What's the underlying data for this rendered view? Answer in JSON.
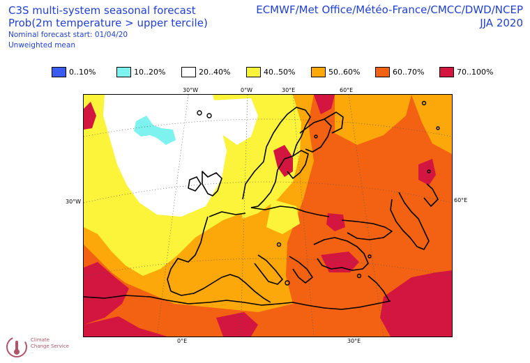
{
  "header": {
    "title": "C3S multi-system seasonal forecast",
    "subtitle": "Prob(2m temperature > upper tercile)",
    "start": "Nominal forecast start: 01/04/20",
    "mean": "Unweighted mean",
    "centres": "ECMWF/Met Office/Météo-France/CMCC/DWD/NCEP",
    "season": "JJA 2020"
  },
  "legend": [
    {
      "label": "0..10%",
      "color": "#3a5cf5"
    },
    {
      "label": "10..20%",
      "color": "#7df2ef"
    },
    {
      "label": "20..40%",
      "color": "#ffffff"
    },
    {
      "label": "40..50%",
      "color": "#fbf43b"
    },
    {
      "label": "50..60%",
      "color": "#fca70a"
    },
    {
      "label": "60..70%",
      "color": "#f36212"
    },
    {
      "label": "70..100%",
      "color": "#d2163f"
    }
  ],
  "graticule_labels": {
    "top": [
      "30°W",
      "0°W",
      "30°E",
      "60°E"
    ],
    "bottom": [
      "0°E",
      "30°E"
    ],
    "left": "30°W",
    "right": "60°E"
  },
  "logo": {
    "name": "Climate Change Service",
    "line1": "Climate",
    "line2": "Change Service",
    "line3": "..."
  }
}
